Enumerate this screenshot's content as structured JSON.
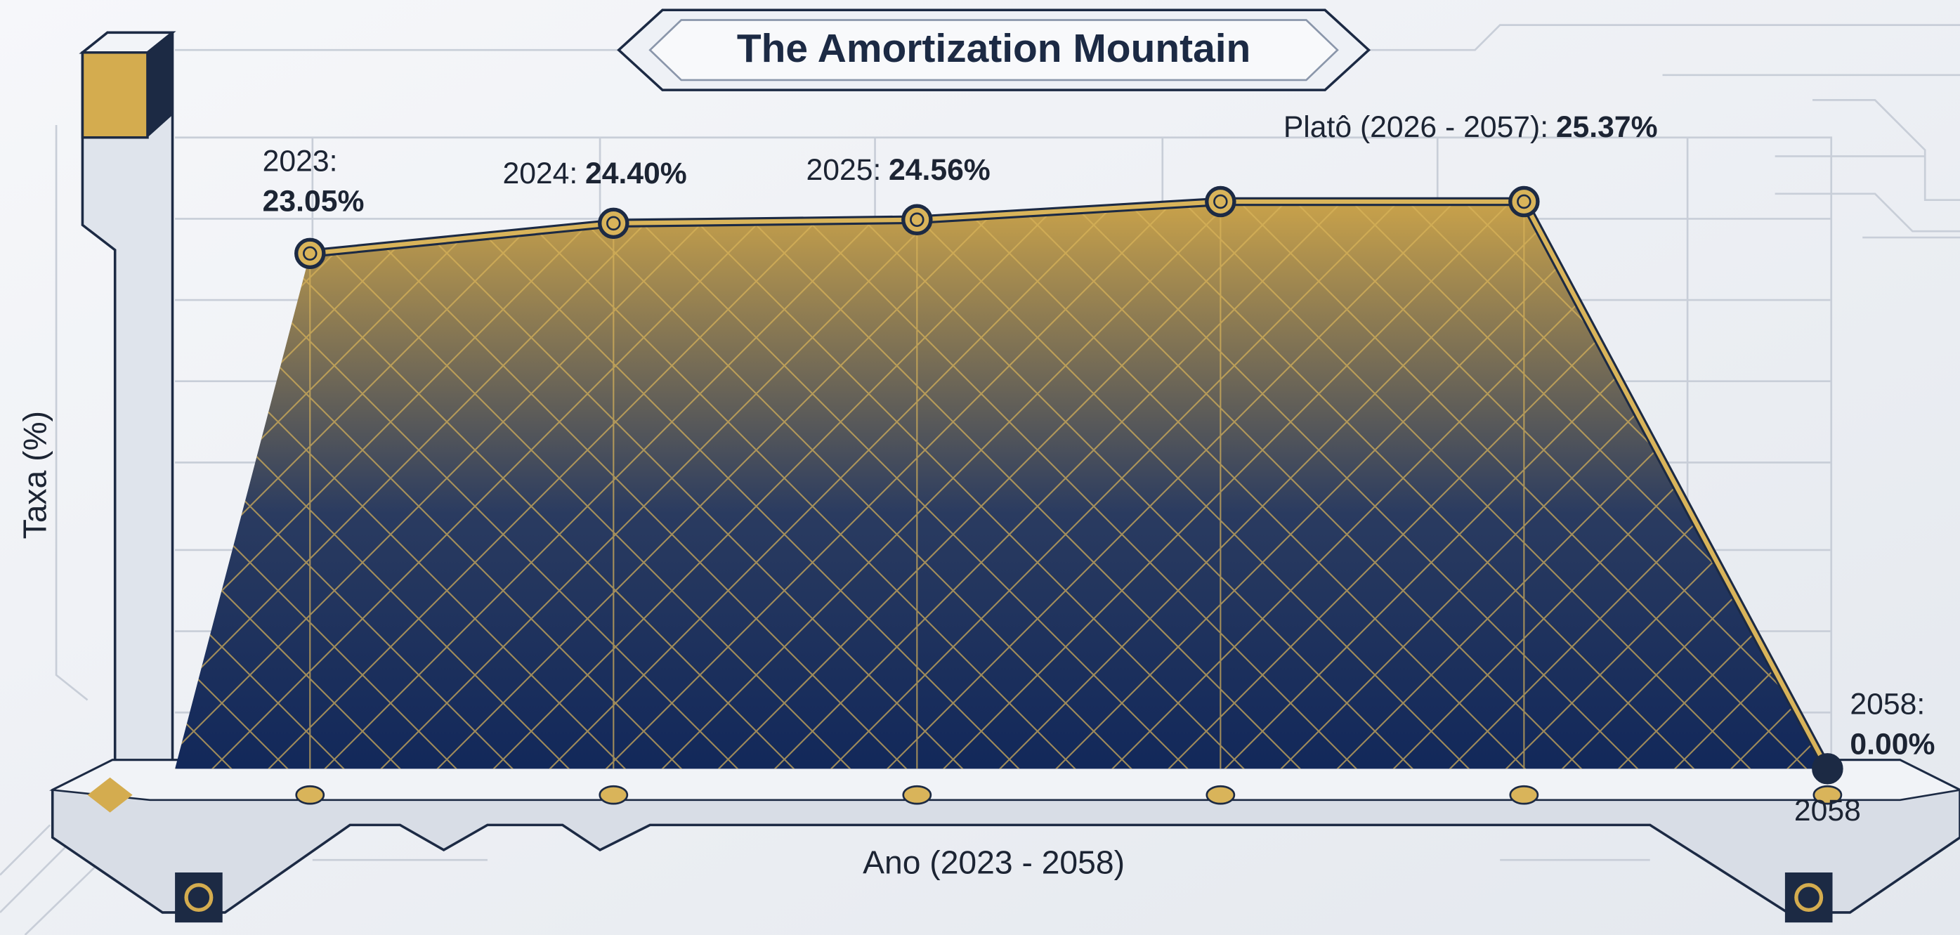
{
  "chart_data": {
    "type": "area",
    "title": "The Amortization Mountain",
    "x_label": "Ano (2023 - 2058)",
    "y_label": "Taxa (%)",
    "categories": [
      null,
      null,
      null,
      null,
      null,
      "2058"
    ],
    "values": [
      23.05,
      24.4,
      24.56,
      25.37,
      25.37,
      0.0
    ],
    "point_labels": [
      "2023:",
      "2024:",
      "2025:",
      "Platô (2026 - 2057):",
      null,
      "2058:"
    ],
    "value_labels": [
      "23.05%",
      "24.40%",
      "24.56%",
      "25.37%",
      null,
      "0.00%"
    ],
    "ylim": [
      0,
      26
    ],
    "color": "#d9b45a",
    "fill_top": "#c9a24a",
    "fill_bottom": "#12285a"
  }
}
